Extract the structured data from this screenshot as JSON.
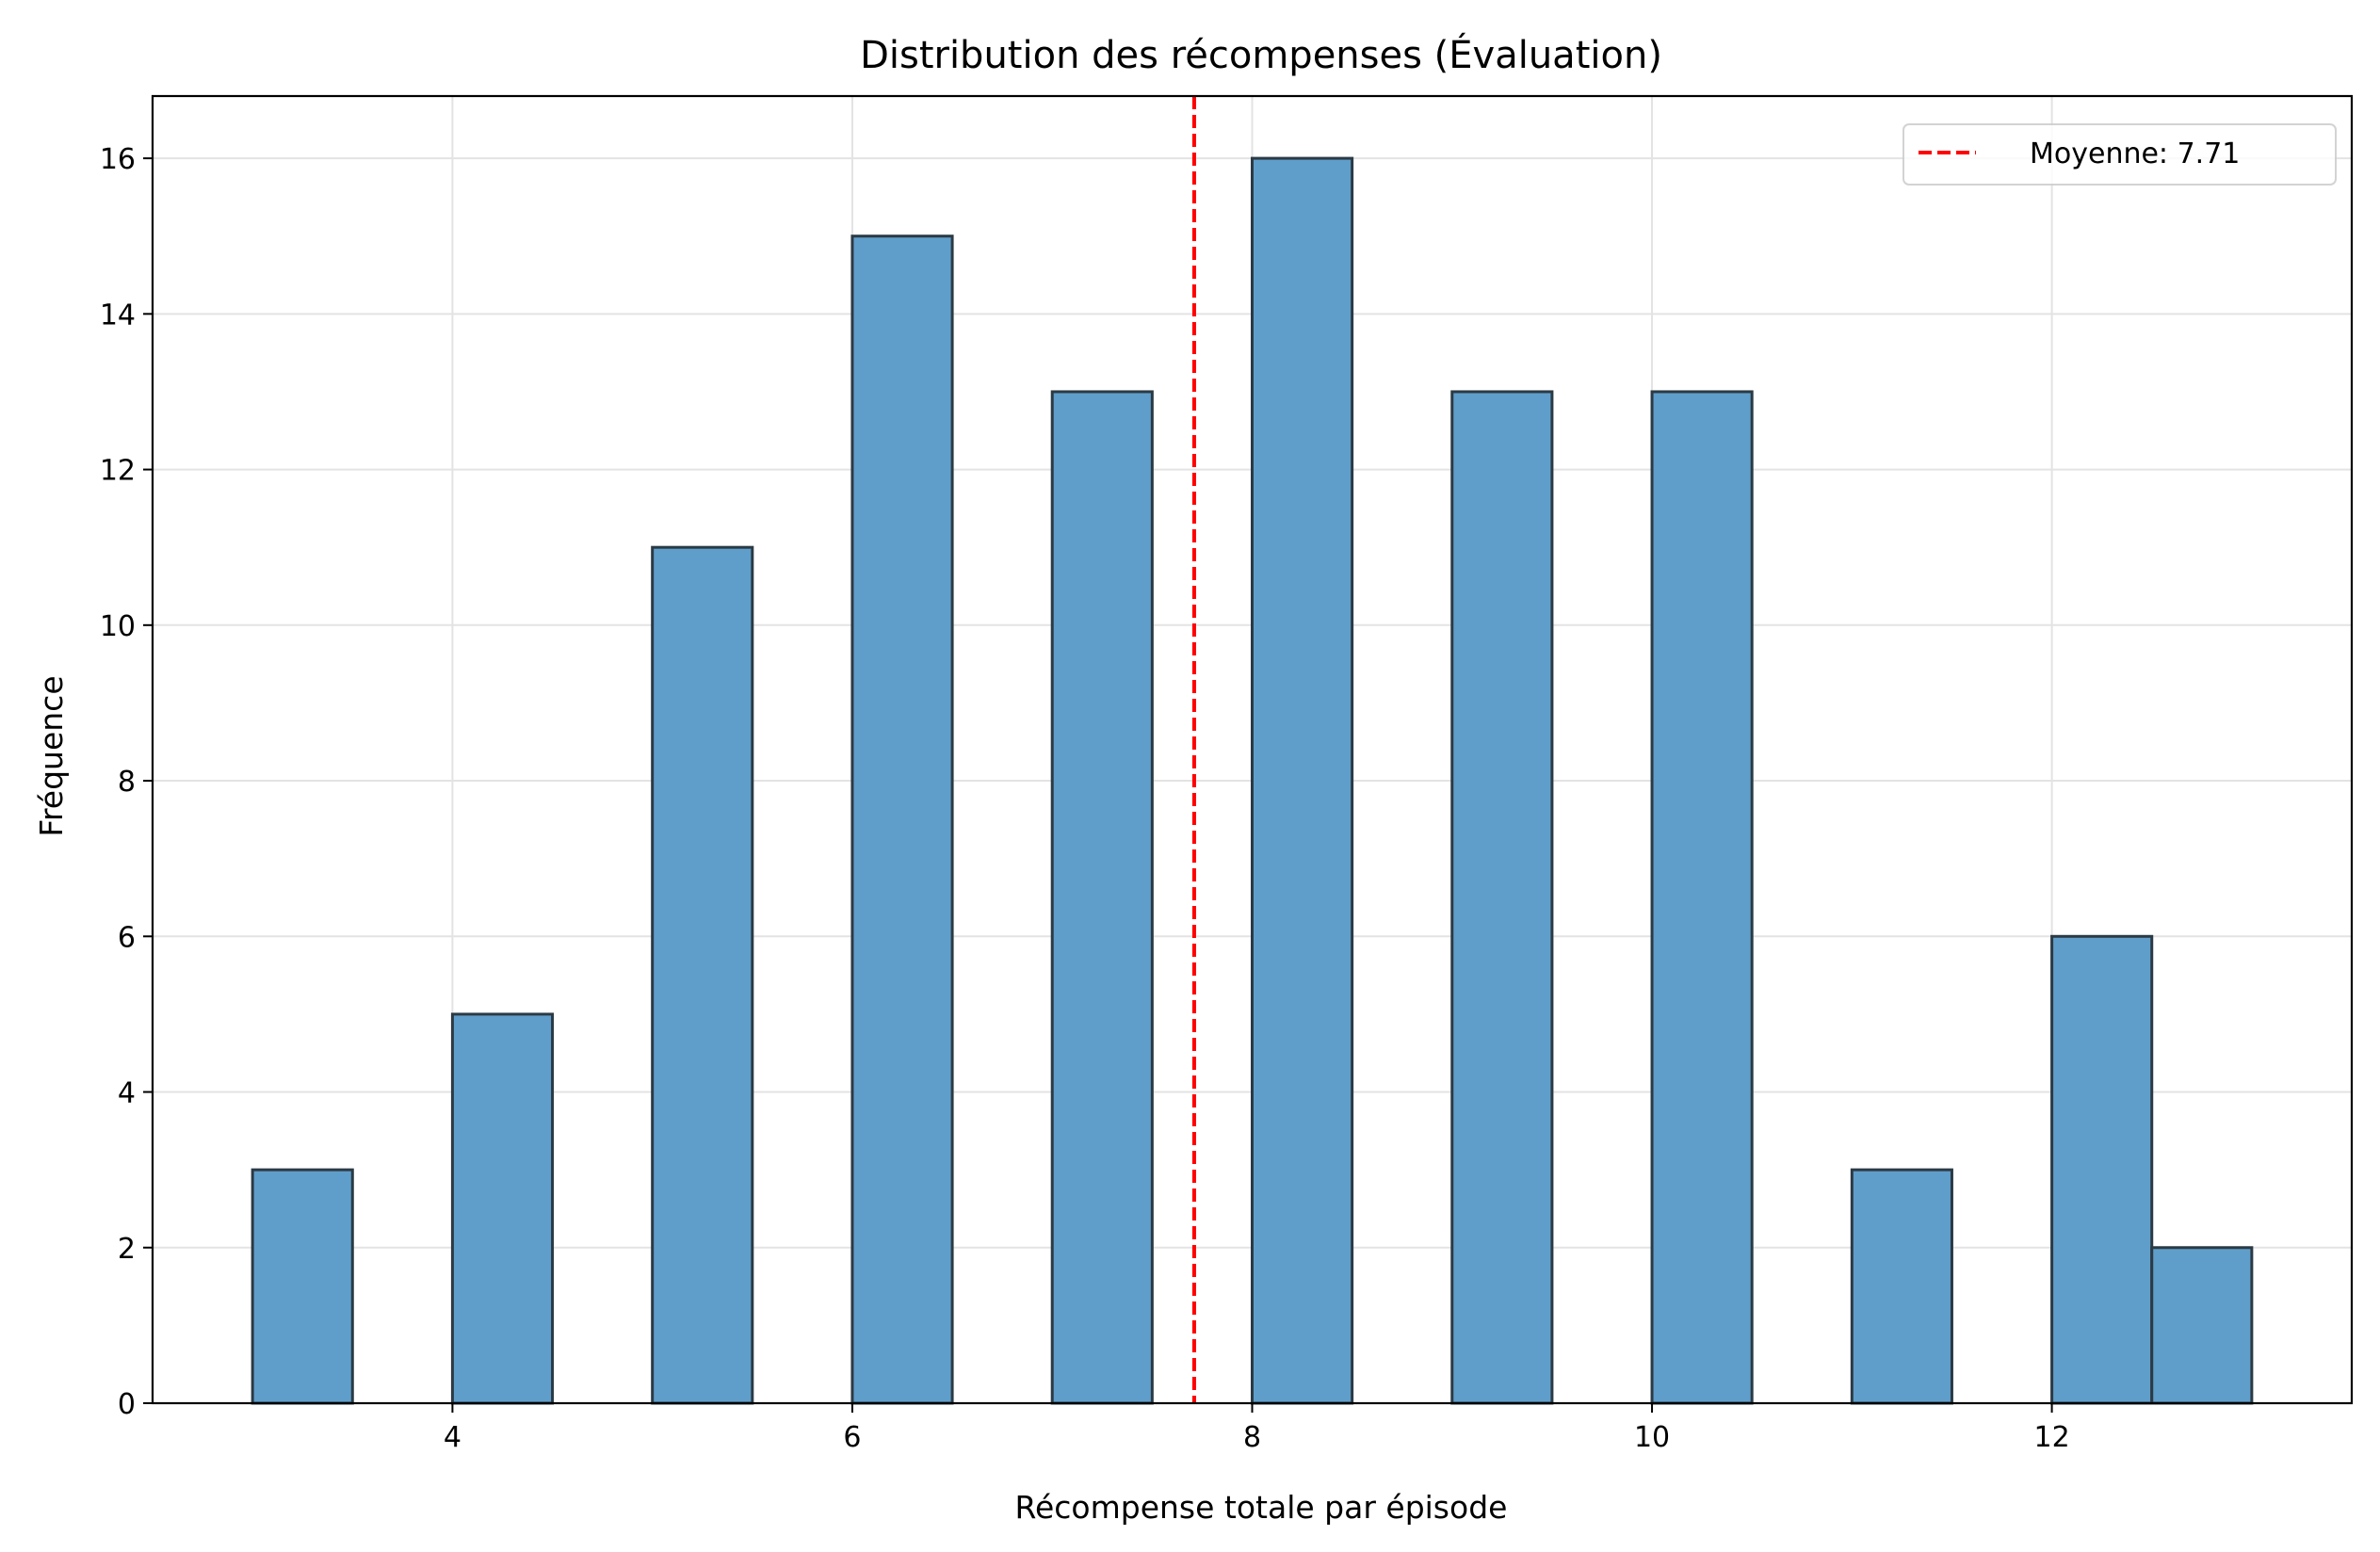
{
  "chart_data": {
    "type": "bar",
    "title": "Distribution des récompenses (Évaluation)",
    "xlabel": "Récompense totale par épisode",
    "ylabel": "Fréquence",
    "xlim": [
      2.5,
      13.5
    ],
    "ylim": [
      0,
      16.8
    ],
    "xticks": [
      4,
      6,
      8,
      10,
      12
    ],
    "yticks": [
      0,
      2,
      4,
      6,
      8,
      10,
      12,
      14,
      16
    ],
    "grid": true,
    "bins": [
      {
        "x0": 3.0,
        "x1": 3.5,
        "count": 3
      },
      {
        "x0": 4.0,
        "x1": 4.5,
        "count": 5
      },
      {
        "x0": 5.0,
        "x1": 5.5,
        "count": 11
      },
      {
        "x0": 6.0,
        "x1": 6.5,
        "count": 15
      },
      {
        "x0": 7.0,
        "x1": 7.5,
        "count": 13
      },
      {
        "x0": 8.0,
        "x1": 8.5,
        "count": 16
      },
      {
        "x0": 9.0,
        "x1": 9.5,
        "count": 13
      },
      {
        "x0": 10.0,
        "x1": 10.5,
        "count": 13
      },
      {
        "x0": 11.0,
        "x1": 11.5,
        "count": 3
      },
      {
        "x0": 12.0,
        "x1": 12.5,
        "count": 6
      },
      {
        "x0": 12.5,
        "x1": 13.0,
        "count": 2
      }
    ],
    "mean_line": {
      "value": 7.71,
      "label": "Moyenne: 7.71",
      "color": "#ff0000",
      "style": "dashed"
    },
    "bar_color": "#5f9ecb",
    "bar_edge_color": "#2b3a44",
    "legend": {
      "position": "top-right",
      "entries": [
        "Moyenne: 7.71"
      ]
    }
  }
}
